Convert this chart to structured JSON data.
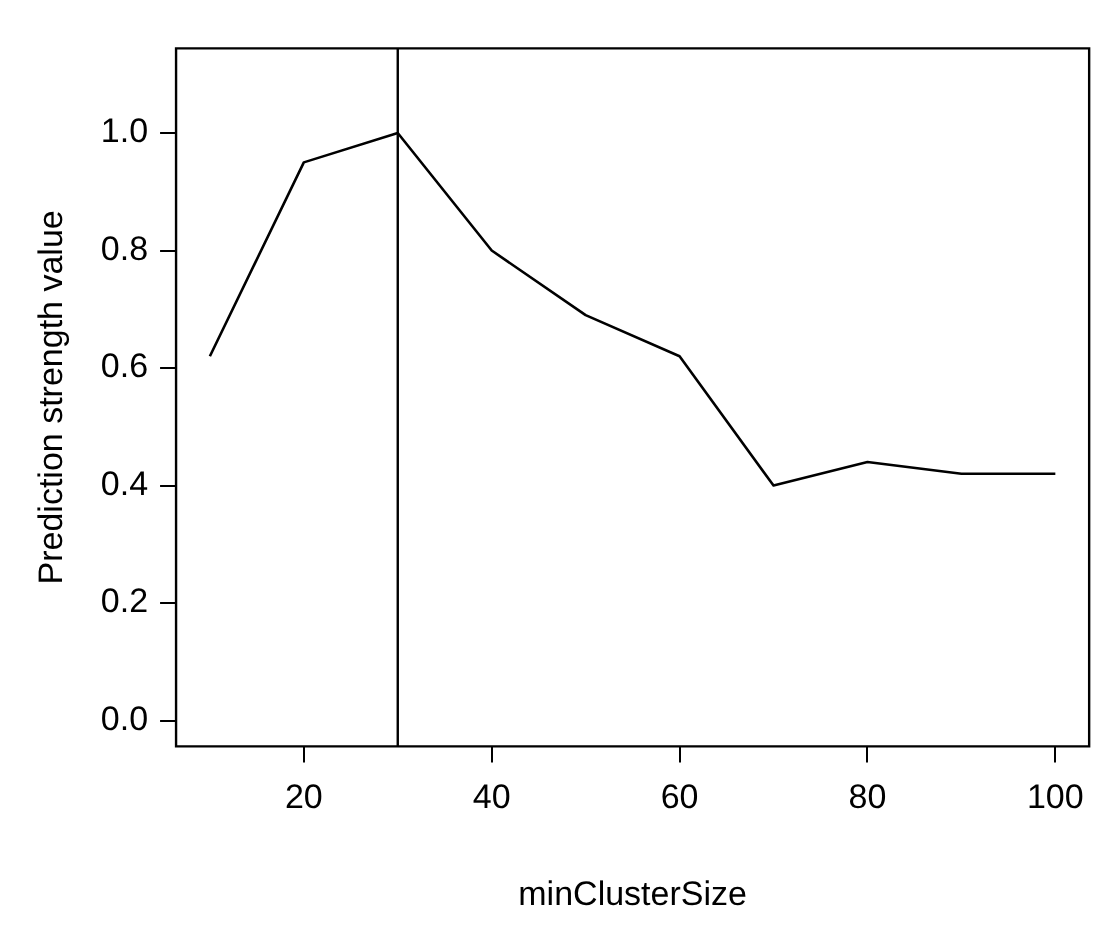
{
  "chart_data": {
    "type": "line",
    "xlabel": "minClusterSize",
    "ylabel": "Prediction strength value",
    "x": [
      10,
      20,
      30,
      40,
      50,
      60,
      70,
      80,
      90,
      100
    ],
    "series": [
      {
        "color": "#000000",
        "values": [
          0.62,
          0.95,
          1.0,
          0.8,
          0.69,
          0.62,
          0.4,
          0.44,
          0.42,
          0.42
        ]
      }
    ],
    "xlim": [
      6.4,
      103.6
    ],
    "ylim": [
      -0.044,
      1.144
    ],
    "xticks": [
      20,
      40,
      60,
      80,
      100
    ],
    "yticks": [
      {
        "value": 0,
        "label": "0.0"
      },
      0.2,
      0.4,
      0.6,
      0.8,
      {
        "value": 1,
        "label": "1.0"
      }
    ],
    "ref_lines": [
      {
        "axis": "x",
        "value": 30,
        "color": "#000000"
      }
    ],
    "grid": false,
    "legend": false,
    "marker": "none",
    "line_style": "solid"
  }
}
